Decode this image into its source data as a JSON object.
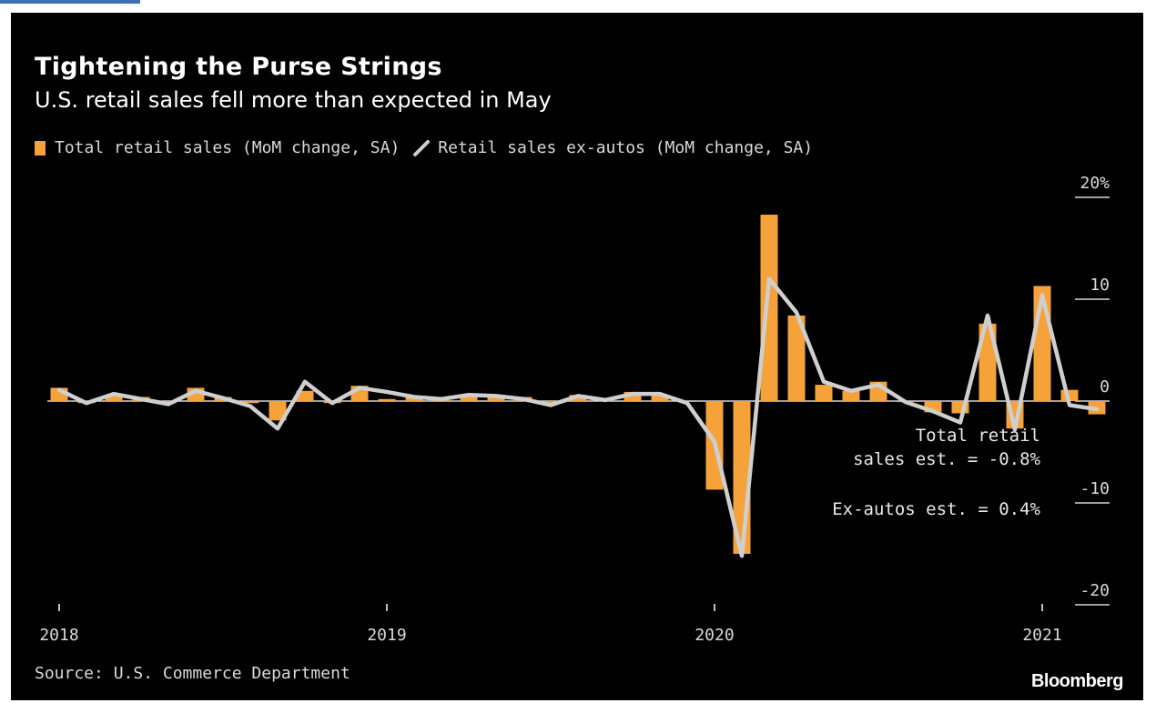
{
  "header": {
    "title": "Tightening the Purse Strings",
    "subtitle": "U.S. retail sales fell more than expected in May"
  },
  "footer": {
    "source": "Source: U.S. Commerce Department",
    "brand": "Bloomberg"
  },
  "colors": {
    "bars": "#f5a23a",
    "line": "#cfcfcf",
    "background": "#000000"
  },
  "chart_data": {
    "type": "bar",
    "title": "Tightening the Purse Strings",
    "subtitle": "U.S. retail sales fell more than expected in May",
    "legend_position": "top-left",
    "series": [
      {
        "name": "Total retail sales (MoM change, SA)",
        "type": "bar",
        "color": "#f5a23a",
        "values": [
          1.3,
          -0.2,
          0.6,
          0.4,
          -0.1,
          1.3,
          0.4,
          -0.2,
          -1.9,
          1.0,
          -0.2,
          1.5,
          0.2,
          0.4,
          0.1,
          0.5,
          0.6,
          0.4,
          -0.2,
          0.6,
          0.3,
          0.9,
          0.6,
          0.0,
          -8.7,
          -15.0,
          18.3,
          8.4,
          1.6,
          1.0,
          1.9,
          -0.1,
          -1.1,
          -1.2,
          7.6,
          -2.7,
          11.3,
          1.1,
          -1.3
        ]
      },
      {
        "name": "Retail sales ex-autos (MoM change, SA)",
        "type": "line",
        "color": "#cfcfcf",
        "values": [
          1.1,
          -0.2,
          0.7,
          0.2,
          -0.3,
          1.0,
          0.3,
          -0.5,
          -2.7,
          1.9,
          -0.2,
          1.3,
          0.9,
          0.4,
          0.2,
          0.6,
          0.5,
          0.2,
          -0.4,
          0.5,
          0.1,
          0.7,
          0.7,
          -0.2,
          -4.0,
          -15.2,
          12.0,
          8.7,
          1.9,
          1.0,
          1.6,
          -0.1,
          -1.0,
          -2.1,
          8.4,
          -2.8,
          10.4,
          -0.4,
          -0.8
        ]
      }
    ],
    "x_start": "2018-01",
    "x_end": "2021-05",
    "xticks": [
      {
        "label": "2018",
        "date": "2018-01"
      },
      {
        "label": "2019",
        "date": "2019-01"
      },
      {
        "label": "2020",
        "date": "2020-01"
      },
      {
        "label": "2021",
        "date": "2021-01"
      }
    ],
    "yticks": [
      {
        "label": "20%",
        "value": 20
      },
      {
        "label": "10",
        "value": 10
      },
      {
        "label": "0",
        "value": 0
      },
      {
        "label": "-10",
        "value": -10
      },
      {
        "label": "-20",
        "value": -20
      }
    ],
    "ylim": [
      -20,
      20
    ],
    "annotations": [
      "Total retail",
      "sales est. = -0.8%",
      "Ex-autos est. = 0.4%"
    ]
  }
}
